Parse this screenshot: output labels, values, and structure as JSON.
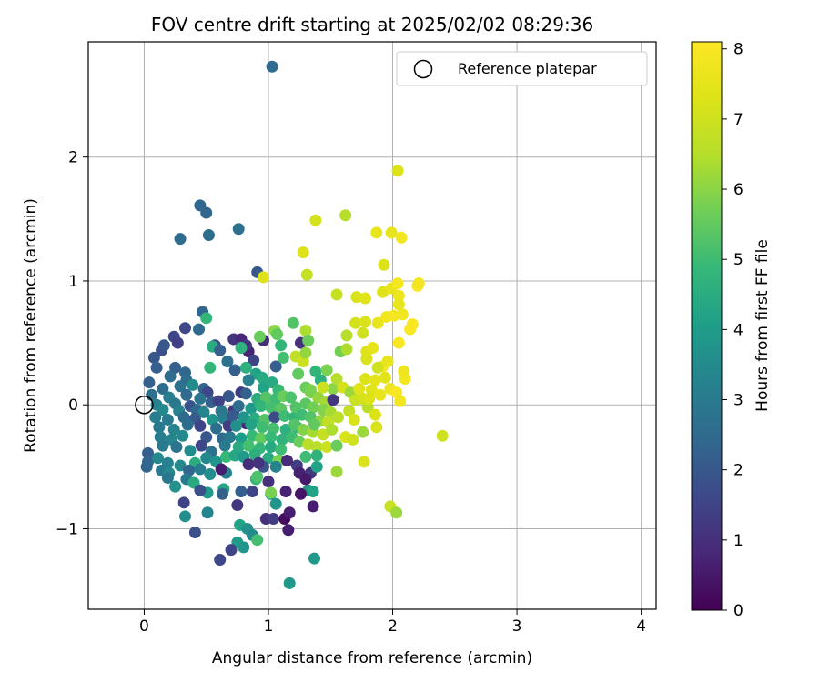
{
  "chart_data": {
    "type": "scatter",
    "title": "FOV centre drift starting at 2025/02/02 08:29:36",
    "xlabel": "Angular distance from reference (arcmin)",
    "ylabel": "Rotation from reference (arcmin)",
    "xlim": [
      -0.45,
      4.12
    ],
    "ylim": [
      -1.65,
      2.93
    ],
    "xticks": [
      0,
      1,
      2,
      3,
      4
    ],
    "xtick_labels": [
      "0",
      "1",
      "2",
      "3",
      "4"
    ],
    "yticks": [
      -1,
      0,
      1,
      2
    ],
    "ytick_labels": [
      "−1",
      "0",
      "1",
      "2"
    ],
    "grid": true,
    "legend": {
      "placement": "top-right",
      "label": "Reference platepar"
    },
    "reference_point": {
      "x": 0,
      "y": 0
    },
    "colorbar": {
      "label": "Hours from first FF file",
      "range": [
        0,
        8.1
      ],
      "ticks": [
        0,
        1,
        2,
        3,
        4,
        5,
        6,
        7,
        8
      ],
      "tick_labels": [
        "0",
        "1",
        "2",
        "3",
        "4",
        "5",
        "6",
        "7",
        "8"
      ],
      "colormap": "viridis"
    },
    "points": [
      [
        1.03,
        2.73,
        2.5
      ],
      [
        0.45,
        1.61,
        2.4
      ],
      [
        0.5,
        1.55,
        2.4
      ],
      [
        0.29,
        1.34,
        2.6
      ],
      [
        0.52,
        1.37,
        2.6
      ],
      [
        0.76,
        1.42,
        2.7
      ],
      [
        0.91,
        1.07,
        2.0
      ],
      [
        0.47,
        0.75,
        2.4
      ],
      [
        0.5,
        0.7,
        4.8
      ],
      [
        0.33,
        0.62,
        1.6
      ],
      [
        0.44,
        0.61,
        2.5
      ],
      [
        0.24,
        0.55,
        1.6
      ],
      [
        0.14,
        0.44,
        1.8
      ],
      [
        0.16,
        0.48,
        2.0
      ],
      [
        0.27,
        0.5,
        1.4
      ],
      [
        0.08,
        0.38,
        2.0
      ],
      [
        0.1,
        0.3,
        2.2
      ],
      [
        0.25,
        0.3,
        2.2
      ],
      [
        0.21,
        0.23,
        2.6
      ],
      [
        0.33,
        0.26,
        2.4
      ],
      [
        0.34,
        0.2,
        2.6
      ],
      [
        0.04,
        0.18,
        2.3
      ],
      [
        0.29,
        0.15,
        2.7
      ],
      [
        0.15,
        0.13,
        2.6
      ],
      [
        0.39,
        0.16,
        3.5
      ],
      [
        0.48,
        0.13,
        2.4
      ],
      [
        0.51,
        0.1,
        1.6
      ],
      [
        0.06,
        0.08,
        2.7
      ],
      [
        0.2,
        0.06,
        3.1
      ],
      [
        0.34,
        0.08,
        2.5
      ],
      [
        0.45,
        0.05,
        2.8
      ],
      [
        0.1,
        0.0,
        3.2
      ],
      [
        0.25,
        0.01,
        2.9
      ],
      [
        0.37,
        -0.01,
        1.9
      ],
      [
        0.54,
        0.02,
        2.2
      ],
      [
        0.6,
        0.03,
        1.5
      ],
      [
        0.15,
        -0.04,
        3.4
      ],
      [
        0.28,
        -0.05,
        3.2
      ],
      [
        0.42,
        -0.04,
        2.4
      ],
      [
        0.48,
        -0.06,
        3.3
      ],
      [
        0.62,
        -0.05,
        2.9
      ],
      [
        0.72,
        -0.05,
        1.2
      ],
      [
        0.09,
        -0.1,
        3.1
      ],
      [
        0.19,
        -0.12,
        3.0
      ],
      [
        0.32,
        -0.1,
        2.5
      ],
      [
        0.41,
        -0.11,
        2.1
      ],
      [
        0.55,
        -0.12,
        3.8
      ],
      [
        0.64,
        -0.11,
        3.1
      ],
      [
        0.12,
        -0.18,
        3.0
      ],
      [
        0.24,
        -0.2,
        3.3
      ],
      [
        0.35,
        -0.16,
        2.6
      ],
      [
        0.45,
        -0.17,
        1.5
      ],
      [
        0.58,
        -0.19,
        2.6
      ],
      [
        0.68,
        -0.17,
        1.3
      ],
      [
        0.82,
        -0.15,
        0.8
      ],
      [
        0.13,
        -0.26,
        3.1
      ],
      [
        0.22,
        -0.28,
        3.3
      ],
      [
        0.31,
        -0.25,
        3.4
      ],
      [
        0.5,
        -0.26,
        2.0
      ],
      [
        0.63,
        -0.27,
        2.5
      ],
      [
        0.15,
        -0.33,
        3.0
      ],
      [
        0.26,
        -0.34,
        2.8
      ],
      [
        0.37,
        -0.37,
        3.5
      ],
      [
        0.46,
        -0.33,
        1.6
      ],
      [
        0.54,
        -0.38,
        2.7
      ],
      [
        0.65,
        -0.33,
        3.0
      ],
      [
        0.03,
        -0.39,
        2.2
      ],
      [
        0.03,
        -0.46,
        2.4
      ],
      [
        0.02,
        -0.5,
        2.4
      ],
      [
        0.11,
        -0.43,
        3.4
      ],
      [
        0.19,
        -0.47,
        3.2
      ],
      [
        0.29,
        -0.49,
        3.4
      ],
      [
        0.41,
        -0.47,
        4.5
      ],
      [
        0.5,
        -0.43,
        3.4
      ],
      [
        0.58,
        -0.46,
        3.8
      ],
      [
        0.66,
        -0.42,
        4.9
      ],
      [
        0.14,
        -0.53,
        3.0
      ],
      [
        0.2,
        -0.55,
        3.4
      ],
      [
        0.36,
        -0.53,
        2.4
      ],
      [
        0.45,
        -0.52,
        3.1
      ],
      [
        0.53,
        -0.56,
        3.6
      ],
      [
        0.66,
        -0.55,
        3.2
      ],
      [
        0.19,
        -0.59,
        2.9
      ],
      [
        0.34,
        -0.6,
        3.0
      ],
      [
        0.4,
        -0.63,
        4.4
      ],
      [
        0.51,
        -0.71,
        4.0
      ],
      [
        0.25,
        -0.66,
        3.7
      ],
      [
        0.45,
        -0.69,
        1.8
      ],
      [
        0.64,
        -0.68,
        4.3
      ],
      [
        0.63,
        -0.72,
        2.3
      ],
      [
        0.78,
        -0.7,
        2.2
      ],
      [
        0.9,
        -0.6,
        4.8
      ],
      [
        0.32,
        -0.79,
        1.5
      ],
      [
        0.33,
        -0.9,
        3.6
      ],
      [
        0.51,
        -0.87,
        3.3
      ],
      [
        0.75,
        -0.81,
        1.2
      ],
      [
        0.41,
        -1.03,
        1.8
      ],
      [
        0.77,
        -0.97,
        4.2
      ],
      [
        0.83,
        -1.0,
        3.7
      ],
      [
        0.87,
        -1.05,
        3.5
      ],
      [
        0.75,
        -1.11,
        4.0
      ],
      [
        0.8,
        -1.15,
        3.8
      ],
      [
        0.7,
        -1.17,
        1.5
      ],
      [
        0.61,
        -1.25,
        1.6
      ],
      [
        0.91,
        -1.09,
        5.1
      ],
      [
        0.98,
        -0.92,
        1.0
      ],
      [
        1.04,
        -0.92,
        1.3
      ],
      [
        1.13,
        -0.92,
        0.2
      ],
      [
        1.16,
        -1.01,
        0.6
      ],
      [
        1.17,
        -0.87,
        0.6
      ],
      [
        1.36,
        -0.82,
        0.6
      ],
      [
        1.32,
        -0.69,
        3.7
      ],
      [
        1.17,
        -1.44,
        3.9
      ],
      [
        1.37,
        -1.24,
        3.9
      ],
      [
        0.57,
        0.48,
        1.8
      ],
      [
        0.55,
        0.47,
        4.5
      ],
      [
        0.61,
        0.44,
        2.2
      ],
      [
        0.67,
        0.35,
        2.7
      ],
      [
        0.72,
        0.53,
        1.1
      ],
      [
        0.78,
        0.53,
        0.8
      ],
      [
        0.84,
        0.43,
        0.7
      ],
      [
        0.88,
        0.36,
        1.5
      ],
      [
        0.96,
        0.52,
        1.0
      ],
      [
        0.93,
        0.55,
        5.6
      ],
      [
        0.82,
        0.48,
        1.2
      ],
      [
        0.78,
        0.46,
        4.7
      ],
      [
        0.53,
        0.3,
        4.8
      ],
      [
        0.73,
        0.28,
        2.2
      ],
      [
        0.9,
        0.25,
        4.2
      ],
      [
        0.82,
        0.3,
        4.6
      ],
      [
        0.95,
        0.22,
        4.4
      ],
      [
        1.06,
        0.31,
        2.2
      ],
      [
        0.84,
        0.2,
        3.2
      ],
      [
        0.96,
        0.14,
        4.2
      ],
      [
        1.03,
        0.18,
        4.4
      ],
      [
        1.08,
        0.12,
        4.9
      ],
      [
        0.78,
        0.1,
        1.3
      ],
      [
        0.82,
        0.09,
        2.3
      ],
      [
        0.68,
        0.07,
        2.0
      ],
      [
        0.91,
        0.05,
        4.5
      ],
      [
        0.98,
        0.06,
        5.3
      ],
      [
        1.06,
        0.05,
        5.0
      ],
      [
        1.12,
        0.07,
        5.6
      ],
      [
        1.18,
        0.06,
        5.2
      ],
      [
        0.76,
        -0.01,
        2.6
      ],
      [
        0.86,
        -0.03,
        4.0
      ],
      [
        0.94,
        -0.01,
        4.8
      ],
      [
        1.02,
        -0.02,
        5.1
      ],
      [
        1.1,
        -0.03,
        5.4
      ],
      [
        0.71,
        -0.09,
        2.1
      ],
      [
        0.8,
        -0.1,
        3.8
      ],
      [
        0.89,
        -0.11,
        4.5
      ],
      [
        0.97,
        -0.12,
        5.3
      ],
      [
        1.05,
        -0.1,
        1.7
      ],
      [
        1.13,
        -0.09,
        5.0
      ],
      [
        1.21,
        -0.1,
        4.8
      ],
      [
        0.74,
        -0.17,
        3.6
      ],
      [
        0.86,
        -0.16,
        4.2
      ],
      [
        0.95,
        -0.18,
        5.0
      ],
      [
        1.04,
        -0.19,
        5.1
      ],
      [
        1.14,
        -0.2,
        4.6
      ],
      [
        1.23,
        -0.18,
        4.9
      ],
      [
        0.69,
        -0.26,
        3.0
      ],
      [
        0.78,
        -0.27,
        4.0
      ],
      [
        0.87,
        -0.25,
        4.9
      ],
      [
        0.94,
        -0.27,
        5.5
      ],
      [
        1.02,
        -0.26,
        4.9
      ],
      [
        1.11,
        -0.28,
        4.7
      ],
      [
        1.19,
        -0.26,
        5.0
      ],
      [
        0.76,
        -0.34,
        4.4
      ],
      [
        0.84,
        -0.33,
        5.1
      ],
      [
        0.93,
        -0.35,
        4.8
      ],
      [
        1.02,
        -0.34,
        4.4
      ],
      [
        1.1,
        -0.36,
        5.0
      ],
      [
        0.73,
        -0.41,
        4.3
      ],
      [
        0.8,
        -0.42,
        3.9
      ],
      [
        0.89,
        -0.4,
        4.6
      ],
      [
        1.0,
        -0.43,
        4.4
      ],
      [
        1.08,
        -0.45,
        5.8
      ],
      [
        0.84,
        -0.48,
        0.9
      ],
      [
        0.96,
        -0.5,
        1.9
      ],
      [
        1.06,
        -0.5,
        3.2
      ],
      [
        1.23,
        -0.49,
        1.3
      ],
      [
        0.91,
        -0.58,
        5.2
      ],
      [
        1.0,
        -0.62,
        1.0
      ],
      [
        1.14,
        -0.7,
        0.7
      ],
      [
        1.26,
        -0.72,
        0.4
      ],
      [
        1.36,
        -0.7,
        4.2
      ],
      [
        1.25,
        -0.55,
        0.7
      ],
      [
        1.34,
        -0.55,
        1.2
      ],
      [
        1.39,
        -0.5,
        4.2
      ],
      [
        1.02,
        -0.72,
        4.2
      ],
      [
        1.06,
        -0.8,
        3.8
      ],
      [
        1.02,
        -0.71,
        5.8
      ],
      [
        1.2,
        0.66,
        5.3
      ],
      [
        1.3,
        0.6,
        6.4
      ],
      [
        1.26,
        0.5,
        1.0
      ],
      [
        1.1,
        0.48,
        4.8
      ],
      [
        1.12,
        0.38,
        5.1
      ],
      [
        1.22,
        0.39,
        6.7
      ],
      [
        1.28,
        0.35,
        6.9
      ],
      [
        1.3,
        0.42,
        6.1
      ],
      [
        1.32,
        0.52,
        5.6
      ],
      [
        1.38,
        0.27,
        4.8
      ],
      [
        1.42,
        0.2,
        4.6
      ],
      [
        1.47,
        0.28,
        5.8
      ],
      [
        1.52,
        0.13,
        6.0
      ],
      [
        1.58,
        0.43,
        5.7
      ],
      [
        1.63,
        0.45,
        6.4
      ],
      [
        1.24,
        0.25,
        5.5
      ],
      [
        1.3,
        0.14,
        5.6
      ],
      [
        1.34,
        0.1,
        5.9
      ],
      [
        1.4,
        0.06,
        6.1
      ],
      [
        1.46,
        0.02,
        6.3
      ],
      [
        1.52,
        0.04,
        1.2
      ],
      [
        1.3,
        0.01,
        5.4
      ],
      [
        1.36,
        -0.02,
        5.7
      ],
      [
        1.44,
        -0.04,
        5.9
      ],
      [
        1.5,
        -0.06,
        6.3
      ],
      [
        1.22,
        -0.02,
        5.3
      ],
      [
        1.27,
        -0.08,
        5.0
      ],
      [
        1.34,
        -0.1,
        5.3
      ],
      [
        1.42,
        -0.13,
        6.1
      ],
      [
        1.48,
        -0.14,
        6.7
      ],
      [
        1.56,
        -0.1,
        6.6
      ],
      [
        1.21,
        -0.16,
        5.3
      ],
      [
        1.28,
        -0.2,
        5.9
      ],
      [
        1.36,
        -0.22,
        6.3
      ],
      [
        1.44,
        -0.24,
        6.8
      ],
      [
        1.51,
        -0.2,
        6.4
      ],
      [
        1.25,
        -0.3,
        5.6
      ],
      [
        1.32,
        -0.32,
        6.6
      ],
      [
        1.39,
        -0.34,
        6.5
      ],
      [
        1.47,
        -0.34,
        6.9
      ],
      [
        1.55,
        -0.33,
        5.6
      ],
      [
        1.62,
        -0.26,
        7.2
      ],
      [
        1.3,
        -0.42,
        5.0
      ],
      [
        1.39,
        -0.41,
        4.7
      ],
      [
        1.55,
        -0.54,
        6.2
      ],
      [
        1.68,
        -0.28,
        7.0
      ],
      [
        1.44,
        0.14,
        6.9
      ],
      [
        1.55,
        0.21,
        6.5
      ],
      [
        1.6,
        0.14,
        7.1
      ],
      [
        1.65,
        -0.05,
        6.8
      ],
      [
        1.66,
        0.1,
        6.2
      ],
      [
        1.7,
        0.04,
        6.9
      ],
      [
        1.73,
        0.13,
        7.4
      ],
      [
        1.76,
        0.05,
        7.1
      ],
      [
        1.78,
        0.21,
        7.3
      ],
      [
        1.8,
        -0.02,
        6.6
      ],
      [
        1.83,
        0.12,
        7.4
      ],
      [
        1.86,
        0.2,
        7.5
      ],
      [
        1.9,
        0.08,
        7.6
      ],
      [
        1.92,
        0.31,
        7.9
      ],
      [
        1.94,
        0.22,
        7.4
      ],
      [
        1.96,
        0.35,
        7.6
      ],
      [
        1.98,
        0.13,
        7.7
      ],
      [
        2.03,
        0.1,
        8.0
      ],
      [
        2.06,
        0.03,
        7.8
      ],
      [
        1.79,
        0.37,
        7.2
      ],
      [
        1.88,
        0.3,
        7.0
      ],
      [
        1.81,
        0.05,
        7.3
      ],
      [
        1.86,
        -0.08,
        7.3
      ],
      [
        1.69,
        -0.12,
        7.2
      ],
      [
        1.87,
        -0.18,
        7.2
      ],
      [
        1.76,
        -0.22,
        6.2
      ],
      [
        1.77,
        -0.46,
        7.2
      ],
      [
        2.4,
        -0.25,
        7.0
      ],
      [
        1.98,
        -0.82,
        6.9
      ],
      [
        2.03,
        -0.87,
        6.2
      ],
      [
        1.63,
        0.56,
        6.5
      ],
      [
        1.7,
        0.66,
        7.1
      ],
      [
        1.76,
        0.58,
        7.0
      ],
      [
        1.79,
        0.43,
        7.3
      ],
      [
        1.84,
        0.46,
        7.5
      ],
      [
        1.88,
        0.66,
        7.6
      ],
      [
        1.78,
        0.67,
        7.2
      ],
      [
        1.95,
        0.71,
        7.8
      ],
      [
        2.01,
        0.72,
        7.9
      ],
      [
        2.05,
        0.5,
        8.0
      ],
      [
        2.08,
        0.73,
        7.8
      ],
      [
        2.14,
        0.61,
        8.0
      ],
      [
        2.16,
        0.65,
        8.0
      ],
      [
        2.09,
        0.27,
        7.7
      ],
      [
        2.1,
        0.21,
        7.8
      ],
      [
        1.71,
        0.87,
        7.2
      ],
      [
        1.78,
        0.86,
        7.4
      ],
      [
        1.55,
        0.89,
        6.8
      ],
      [
        1.92,
        0.91,
        7.3
      ],
      [
        1.99,
        0.94,
        7.6
      ],
      [
        2.04,
        0.98,
        7.9
      ],
      [
        2.05,
        0.88,
        7.7
      ],
      [
        2.05,
        0.81,
        7.6
      ],
      [
        2.2,
        0.96,
        8.0
      ],
      [
        2.21,
        0.98,
        7.8
      ],
      [
        1.31,
        1.05,
        6.8
      ],
      [
        1.28,
        1.23,
        7.3
      ],
      [
        1.38,
        1.49,
        7.1
      ],
      [
        1.62,
        1.53,
        6.5
      ],
      [
        1.93,
        1.13,
        7.3
      ],
      [
        1.87,
        1.39,
        7.6
      ],
      [
        1.99,
        1.39,
        7.6
      ],
      [
        2.07,
        1.35,
        7.8
      ],
      [
        2.04,
        1.89,
        7.3
      ],
      [
        0.96,
        1.03,
        7.3
      ],
      [
        1.05,
        0.6,
        6.0
      ],
      [
        1.07,
        0.57,
        5.5
      ],
      [
        1.34,
        0.12,
        5.8
      ],
      [
        1.37,
        -0.16,
        5.5
      ],
      [
        0.62,
        -0.52,
        0.6
      ],
      [
        0.87,
        -0.7,
        1.5
      ],
      [
        0.92,
        -0.47,
        1.1
      ],
      [
        1.15,
        -0.45,
        0.9
      ],
      [
        1.3,
        -0.6,
        0.5
      ]
    ]
  }
}
